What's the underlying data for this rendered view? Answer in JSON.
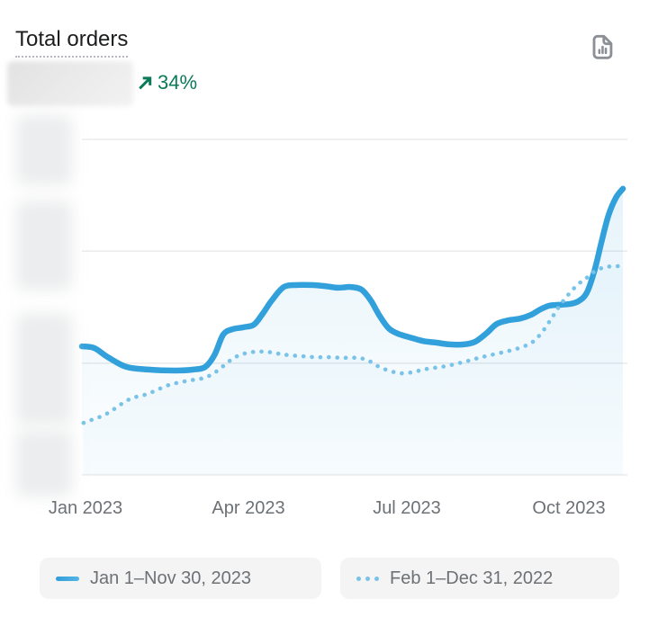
{
  "header": {
    "title": "Total orders"
  },
  "metric": {
    "value_redacted": true,
    "change": "34%",
    "change_direction": "up"
  },
  "toolbar": {
    "report_icon": "report-file-bar-chart-icon"
  },
  "y_axis": {
    "labels_redacted": true,
    "redaction_count": 4
  },
  "colors": {
    "line_2023": "#32a0da",
    "line_2022": "#79c3e8",
    "area_fill": "#33a0da",
    "change_positive": "#0b7a58",
    "grid": "#e6e8ea",
    "text_primary": "#1c1d1f",
    "text_secondary": "#6d7175",
    "legend_bg": "#f4f4f5",
    "icon_gray": "#8a9095"
  },
  "chart_data": {
    "type": "line",
    "title": "Total orders",
    "x_ticks": [
      {
        "label": "Jan 2023",
        "pos": 0.005
      },
      {
        "label": "Apr 2023",
        "pos": 0.308
      },
      {
        "label": "Jul 2023",
        "pos": 0.6
      },
      {
        "label": "Oct 2023",
        "pos": 0.9
      }
    ],
    "ylim": [
      0,
      100
    ],
    "grid_values": [
      0,
      33.3,
      66.7,
      100
    ],
    "y_note": "y-axis tick labels are blurred/redacted in the source; series values are relative units where 0 = bottom gridline and 100 = top gridline",
    "legend_position": "bottom",
    "series": [
      {
        "name": "Jan 1–Nov 30, 2023",
        "style": "solid",
        "color": "#32a0da",
        "points": [
          [
            0.0,
            38.3
          ],
          [
            0.023,
            37.8
          ],
          [
            0.048,
            35.1
          ],
          [
            0.082,
            32.2
          ],
          [
            0.123,
            31.4
          ],
          [
            0.173,
            31.1
          ],
          [
            0.206,
            31.4
          ],
          [
            0.228,
            32.2
          ],
          [
            0.245,
            35.7
          ],
          [
            0.261,
            41.8
          ],
          [
            0.278,
            43.4
          ],
          [
            0.298,
            44.0
          ],
          [
            0.318,
            44.8
          ],
          [
            0.334,
            48.0
          ],
          [
            0.351,
            52.0
          ],
          [
            0.373,
            56.0
          ],
          [
            0.398,
            56.6
          ],
          [
            0.423,
            56.6
          ],
          [
            0.448,
            56.3
          ],
          [
            0.473,
            55.8
          ],
          [
            0.497,
            56.0
          ],
          [
            0.517,
            55.2
          ],
          [
            0.534,
            52.0
          ],
          [
            0.551,
            47.2
          ],
          [
            0.567,
            43.7
          ],
          [
            0.584,
            42.1
          ],
          [
            0.606,
            41.0
          ],
          [
            0.631,
            39.9
          ],
          [
            0.656,
            39.4
          ],
          [
            0.68,
            38.9
          ],
          [
            0.706,
            38.9
          ],
          [
            0.727,
            39.7
          ],
          [
            0.747,
            42.1
          ],
          [
            0.767,
            45.0
          ],
          [
            0.789,
            46.1
          ],
          [
            0.81,
            46.6
          ],
          [
            0.83,
            47.7
          ],
          [
            0.847,
            49.3
          ],
          [
            0.863,
            50.4
          ],
          [
            0.88,
            50.7
          ],
          [
            0.9,
            50.9
          ],
          [
            0.917,
            51.7
          ],
          [
            0.933,
            54.2
          ],
          [
            0.947,
            60.6
          ],
          [
            0.96,
            69.2
          ],
          [
            0.973,
            77.2
          ],
          [
            0.987,
            82.6
          ],
          [
            1.0,
            85.3
          ]
        ]
      },
      {
        "name": "Feb 1–Dec 31, 2022",
        "style": "dotted",
        "color": "#79c3e8",
        "points": [
          [
            0.003,
            15.5
          ],
          [
            0.018,
            16.4
          ],
          [
            0.035,
            17.4
          ],
          [
            0.052,
            18.8
          ],
          [
            0.068,
            20.6
          ],
          [
            0.085,
            22.3
          ],
          [
            0.101,
            23.3
          ],
          [
            0.121,
            24.1
          ],
          [
            0.141,
            25.5
          ],
          [
            0.161,
            26.8
          ],
          [
            0.181,
            27.6
          ],
          [
            0.201,
            28.2
          ],
          [
            0.221,
            28.7
          ],
          [
            0.241,
            30.0
          ],
          [
            0.261,
            32.4
          ],
          [
            0.281,
            34.9
          ],
          [
            0.301,
            36.2
          ],
          [
            0.321,
            36.7
          ],
          [
            0.341,
            36.7
          ],
          [
            0.361,
            36.2
          ],
          [
            0.381,
            35.7
          ],
          [
            0.406,
            35.4
          ],
          [
            0.431,
            35.1
          ],
          [
            0.456,
            35.1
          ],
          [
            0.481,
            34.9
          ],
          [
            0.506,
            34.9
          ],
          [
            0.527,
            34.3
          ],
          [
            0.547,
            32.4
          ],
          [
            0.567,
            31.1
          ],
          [
            0.589,
            30.3
          ],
          [
            0.611,
            30.6
          ],
          [
            0.631,
            31.4
          ],
          [
            0.651,
            31.9
          ],
          [
            0.672,
            32.4
          ],
          [
            0.694,
            33.2
          ],
          [
            0.714,
            34.0
          ],
          [
            0.734,
            34.9
          ],
          [
            0.755,
            35.7
          ],
          [
            0.777,
            36.5
          ],
          [
            0.797,
            37.3
          ],
          [
            0.817,
            38.3
          ],
          [
            0.834,
            39.7
          ],
          [
            0.85,
            42.4
          ],
          [
            0.867,
            46.4
          ],
          [
            0.883,
            50.4
          ],
          [
            0.9,
            53.9
          ],
          [
            0.917,
            56.8
          ],
          [
            0.933,
            58.7
          ],
          [
            0.95,
            60.9
          ],
          [
            0.967,
            61.9
          ],
          [
            0.983,
            62.2
          ],
          [
            1.0,
            62.2
          ]
        ]
      }
    ]
  }
}
